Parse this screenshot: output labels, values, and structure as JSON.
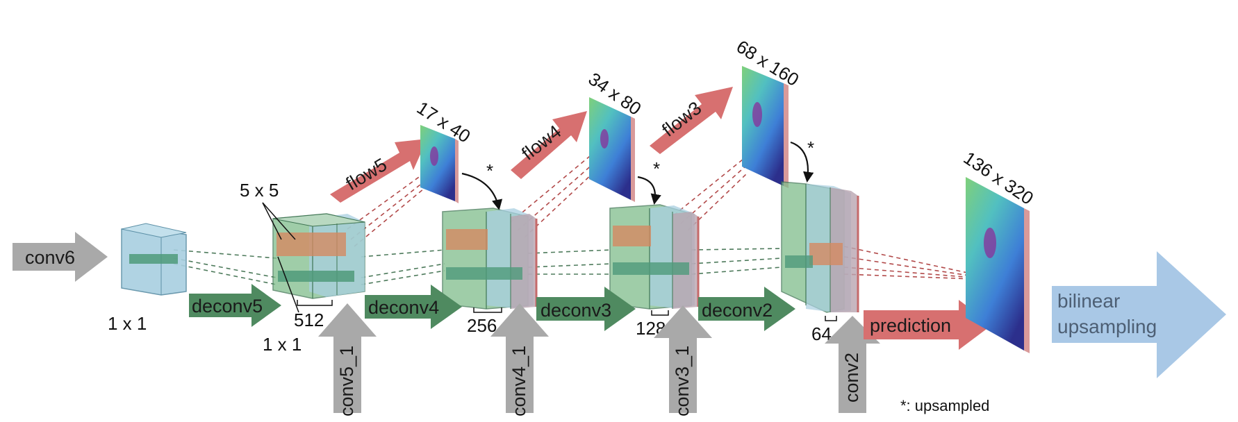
{
  "colors": {
    "gray_arrow": "#a9a9a9",
    "green_arrow": "#4f8a60",
    "red_arrow": "#d77070",
    "blue_arrow": "#a9c8e6",
    "cube_blue": "#a8cfe0",
    "cube_green": "#7fbd8c",
    "patch_orange": "#d48a62",
    "dash_red": "#b24a4a",
    "dash_green": "#4d7a5b"
  },
  "inputs": {
    "conv6": "conv6",
    "conv5_1": "conv5_1",
    "conv4_1": "conv4_1",
    "conv3_1": "conv3_1",
    "conv2": "conv2"
  },
  "deconvs": {
    "deconv5": "deconv5",
    "deconv4": "deconv4",
    "deconv3": "deconv3",
    "deconv2": "deconv2"
  },
  "flows": {
    "flow5": "flow5",
    "flow4": "flow4",
    "flow3": "flow3"
  },
  "prediction": "prediction",
  "upsampling": {
    "line1": "bilinear",
    "line2": "upsampling"
  },
  "kernels": {
    "k1x1_top": "1 x 1",
    "k5x5": "5 x 5",
    "k1x1_bottom": "1 x 1"
  },
  "channels": [
    "512",
    "256",
    "128",
    "64"
  ],
  "resolutions": {
    "flow5": "17 x 40",
    "flow4": "34 x 80",
    "flow3": "68 x 160",
    "prediction": "136 x 320"
  },
  "upsampled_mark": "*",
  "legend": "*: upsampled",
  "icons": {
    "input_arrow": "block-arrow-icon",
    "flow_map": "flow-map-icon",
    "feature_block": "feature-volume-icon"
  }
}
